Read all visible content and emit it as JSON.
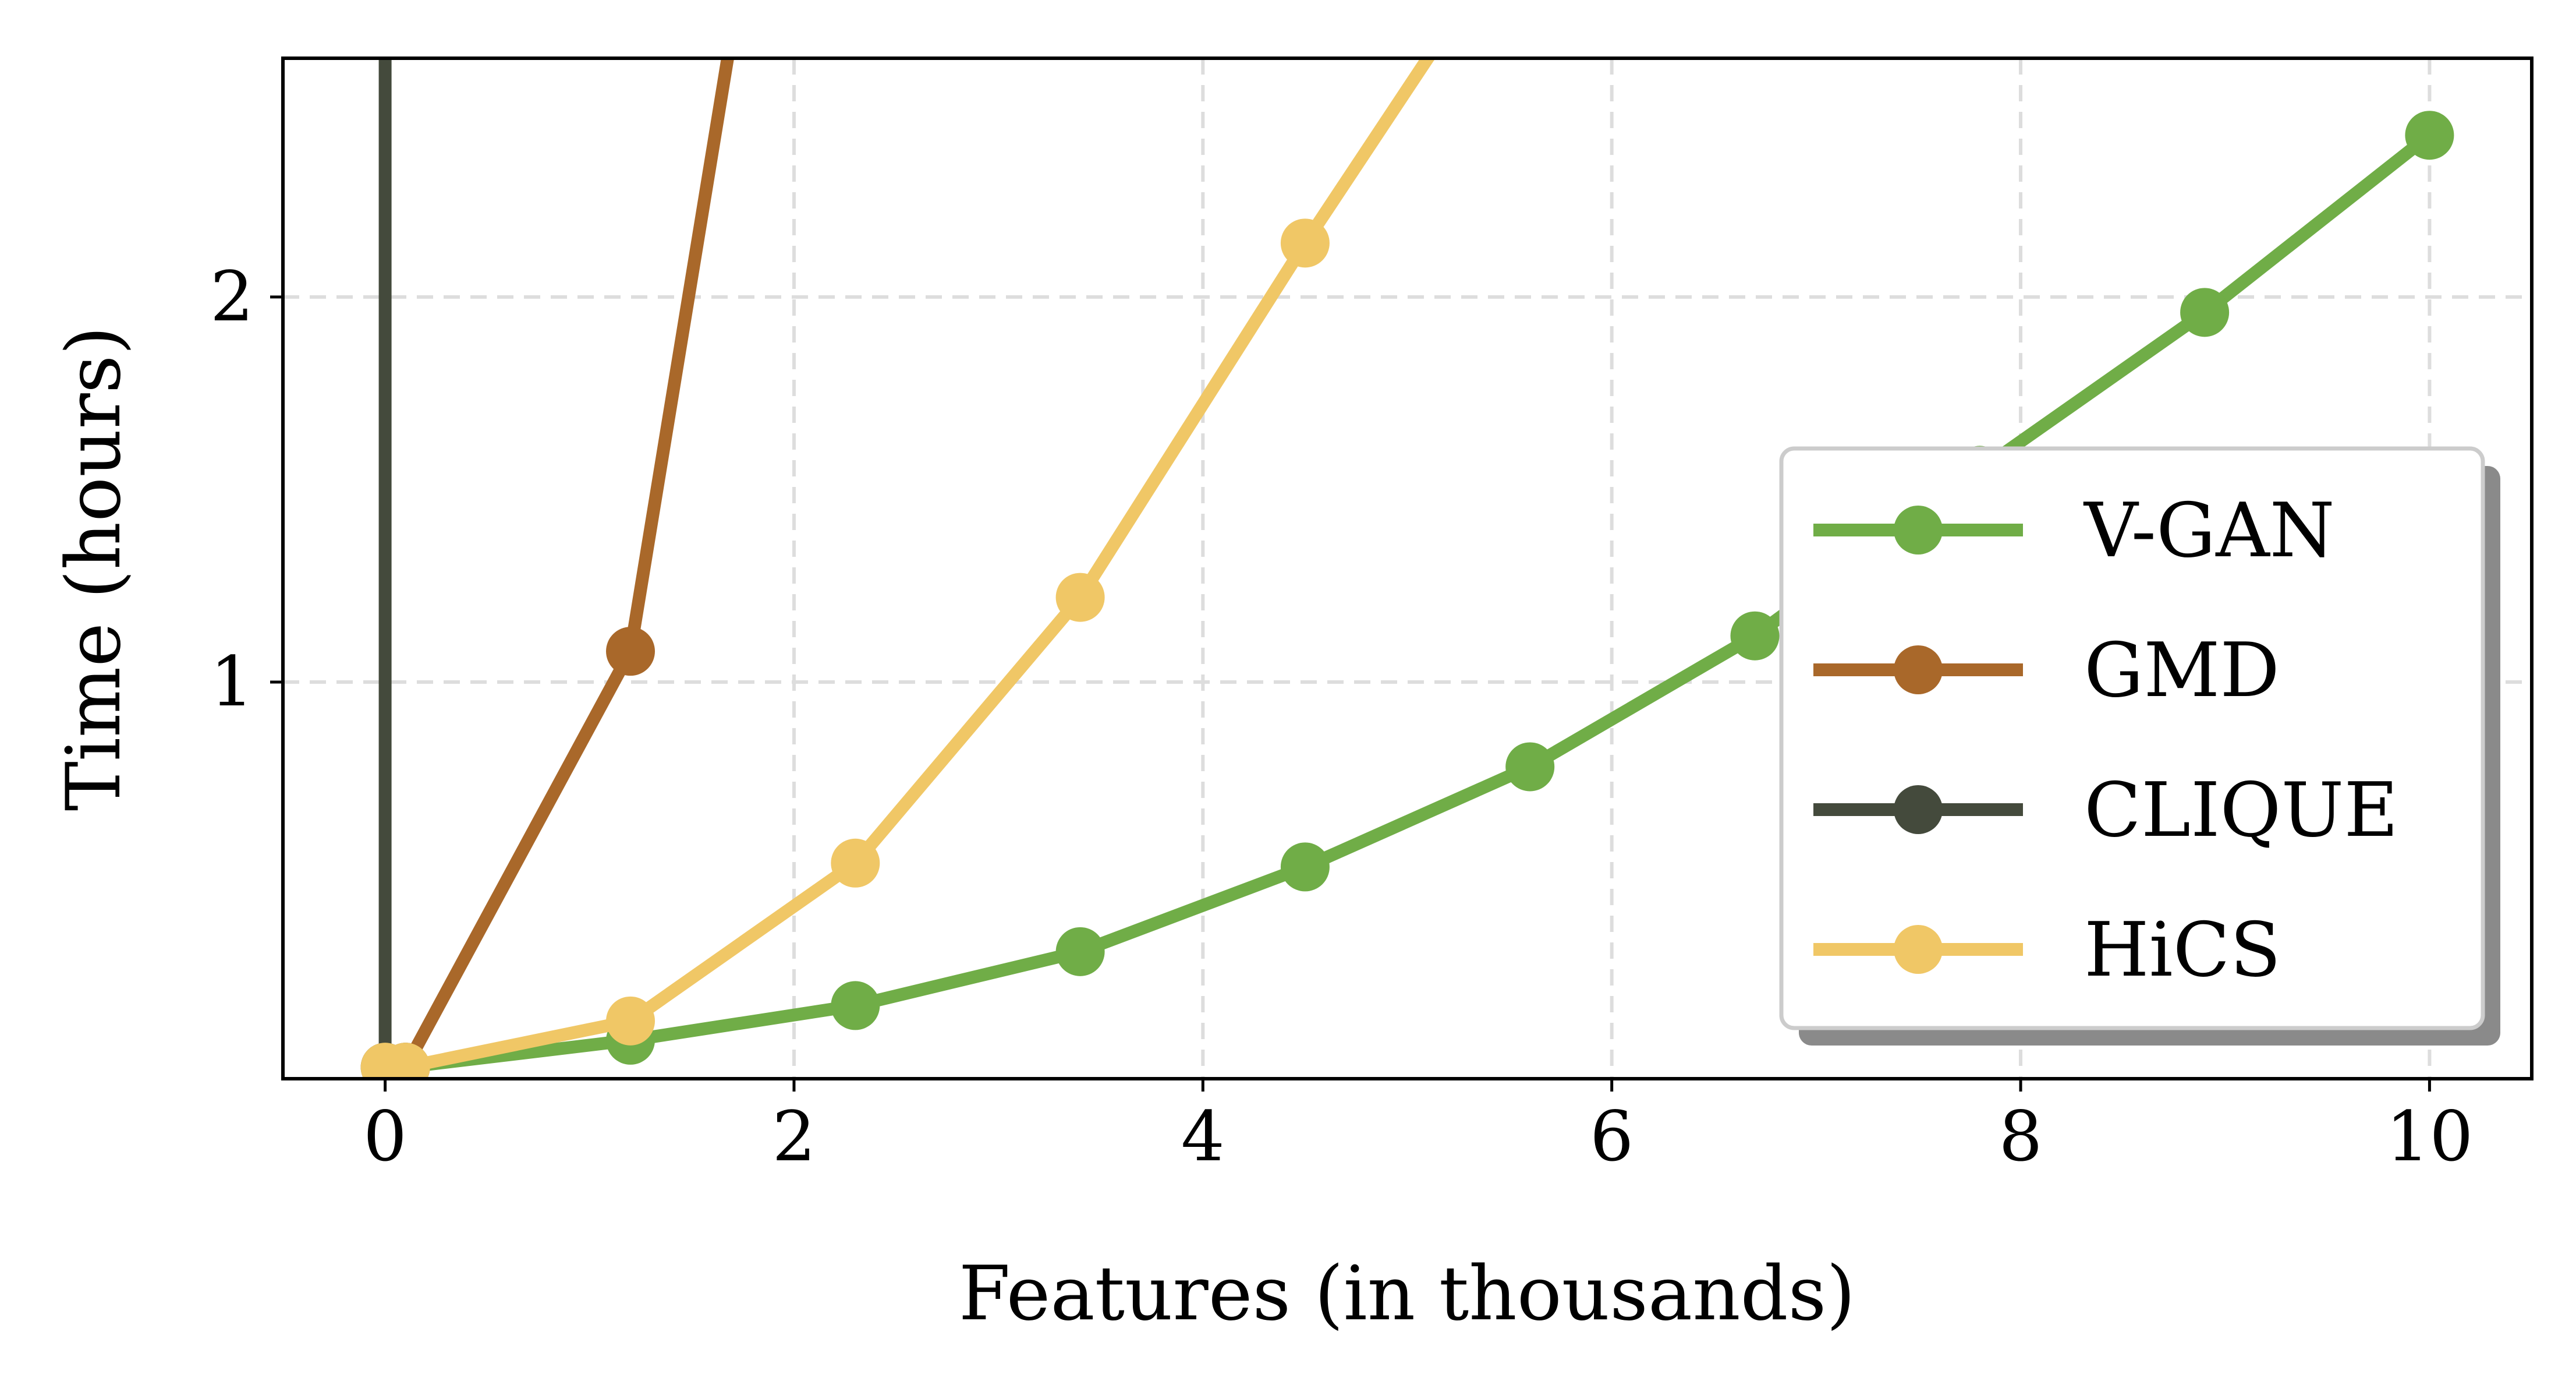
{
  "chart_data": {
    "type": "line",
    "xlabel": "Features (in thousands)",
    "ylabel": "Time (hours)",
    "xlim": [
      -0.5,
      10.5
    ],
    "ylim": [
      -0.03,
      2.62
    ],
    "xticks": [
      0,
      2,
      4,
      6,
      8,
      10
    ],
    "yticks": [
      1,
      2
    ],
    "grid": true,
    "legend_position": "lower-right",
    "series": [
      {
        "name": "V-GAN",
        "color": "#70ad47",
        "x": [
          0.1,
          1.2,
          2.3,
          3.4,
          4.5,
          5.6,
          6.7,
          7.8,
          8.9,
          10.0
        ],
        "y": [
          0.0,
          0.07,
          0.16,
          0.3,
          0.52,
          0.78,
          1.12,
          1.55,
          1.96,
          2.42
        ]
      },
      {
        "name": "GMD",
        "color": "#a9682a",
        "x": [
          0.1,
          1.2,
          1.7
        ],
        "y": [
          0.0,
          1.08,
          2.7
        ]
      },
      {
        "name": "CLIQUE",
        "color": "#444a3c",
        "x": [
          0.0,
          0.0
        ],
        "y": [
          0.0,
          2.7
        ]
      },
      {
        "name": "HiCS",
        "color": "#f0c766",
        "x": [
          0.0,
          0.1,
          1.2,
          2.3,
          3.4,
          4.5,
          5.2
        ],
        "y": [
          0.0,
          0.0,
          0.12,
          0.53,
          1.22,
          2.14,
          2.7
        ]
      }
    ],
    "legend_entries": [
      "V-GAN",
      "GMD",
      "CLIQUE",
      "HiCS"
    ]
  }
}
